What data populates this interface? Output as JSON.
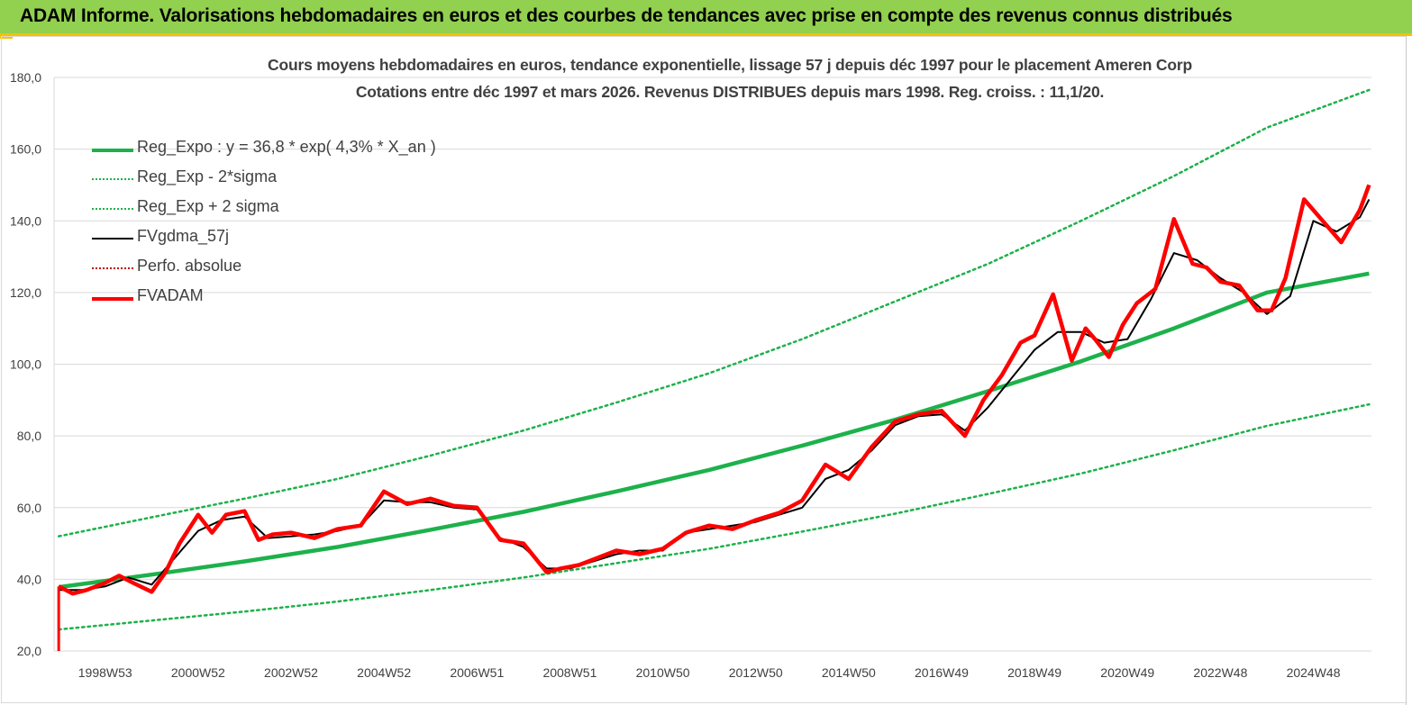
{
  "banner": {
    "title": "ADAM Informe. Valorisations hebdomadaires en euros et des courbes de tendances avec prise en compte des revenus connus distribués"
  },
  "colors": {
    "banner": "#92d050",
    "banner_accent": "#f2c300",
    "trend": "#1db14b",
    "sigma": "#1db14b",
    "smooth": "#000000",
    "perf": "#c00000",
    "fvadam": "#ff0000"
  },
  "chart_data": {
    "type": "line",
    "title": "Cours moyens hebdomadaires en euros, tendance exponentielle, lissage 57 j depuis déc 1997 pour le placement Ameren Corp",
    "subtitle": "Cotations entre déc 1997 et mars 2026. Revenus DISTRIBUES depuis mars 1998. Reg. croiss. : 11,1/20.",
    "xlabel": "",
    "ylabel": "",
    "ylim": [
      20,
      180
    ],
    "xlim": [
      1997.9,
      2026.25
    ],
    "yticks": [
      "20,0",
      "40,0",
      "60,0",
      "80,0",
      "100,0",
      "120,0",
      "140,0",
      "160,0",
      "180,0"
    ],
    "xticks": [
      {
        "label": "1998W53",
        "x": 1999.0
      },
      {
        "label": "2000W52",
        "x": 2001.0
      },
      {
        "label": "2002W52",
        "x": 2003.0
      },
      {
        "label": "2004W52",
        "x": 2005.0
      },
      {
        "label": "2006W51",
        "x": 2007.0
      },
      {
        "label": "2008W51",
        "x": 2009.0
      },
      {
        "label": "2010W50",
        "x": 2011.0
      },
      {
        "label": "2012W50",
        "x": 2013.0
      },
      {
        "label": "2014W50",
        "x": 2015.0
      },
      {
        "label": "2016W49",
        "x": 2017.0
      },
      {
        "label": "2018W49",
        "x": 2019.0
      },
      {
        "label": "2020W49",
        "x": 2021.0
      },
      {
        "label": "2022W48",
        "x": 2023.0
      },
      {
        "label": "2024W48",
        "x": 2025.0
      }
    ],
    "grid": true,
    "legend_position": "top-left",
    "series": [
      {
        "name": "Reg_Expo : y = 36,8 * exp( 4,3% *  X_an )",
        "style": "solid-thick",
        "color": "#1db14b",
        "x": [
          1998.0,
          2000.0,
          2002.0,
          2004.0,
          2006.0,
          2008.0,
          2010.0,
          2012.0,
          2014.0,
          2016.0,
          2018.0,
          2020.0,
          2022.0,
          2024.0,
          2026.2
        ],
        "values": [
          37.8,
          41.3,
          45.0,
          49.0,
          53.8,
          58.8,
          64.5,
          70.5,
          77.3,
          84.5,
          92.5,
          100.8,
          110.0,
          120.0,
          125.3
        ]
      },
      {
        "name": "Reg_Exp - 2*sigma",
        "style": "dotted",
        "color": "#1db14b",
        "x": [
          1998.0,
          2000.0,
          2002.0,
          2004.0,
          2006.0,
          2008.0,
          2010.0,
          2012.0,
          2014.0,
          2016.0,
          2018.0,
          2020.0,
          2022.0,
          2024.0,
          2026.2
        ],
        "values": [
          26.0,
          28.5,
          31.0,
          33.8,
          37.0,
          40.5,
          44.5,
          48.5,
          53.3,
          58.3,
          63.8,
          69.5,
          76.0,
          82.8,
          88.8
        ]
      },
      {
        "name": "Reg_Exp + 2 sigma",
        "style": "dotted",
        "color": "#1db14b",
        "x": [
          1998.0,
          2000.0,
          2002.0,
          2004.0,
          2006.0,
          2008.0,
          2010.0,
          2012.0,
          2014.0,
          2016.0,
          2018.0,
          2020.0,
          2022.0,
          2024.0,
          2026.2
        ],
        "values": [
          52.0,
          57.3,
          62.5,
          68.0,
          74.5,
          81.5,
          89.3,
          97.5,
          107.0,
          117.5,
          128.0,
          140.0,
          152.5,
          166.0,
          176.5
        ]
      },
      {
        "name": "FVgdma_57j",
        "style": "solid",
        "color": "#000000",
        "x": [
          1998.0,
          1998.5,
          1999.0,
          1999.5,
          2000.0,
          2000.5,
          2001.0,
          2001.5,
          2002.0,
          2002.5,
          2003.0,
          2003.5,
          2004.0,
          2004.5,
          2005.0,
          2005.5,
          2006.0,
          2006.5,
          2007.0,
          2007.5,
          2008.0,
          2008.5,
          2009.0,
          2009.5,
          2010.0,
          2010.5,
          2011.0,
          2011.5,
          2012.0,
          2012.5,
          2013.0,
          2013.5,
          2014.0,
          2014.5,
          2015.0,
          2015.5,
          2016.0,
          2016.5,
          2017.0,
          2017.5,
          2018.0,
          2018.5,
          2019.0,
          2019.5,
          2020.0,
          2020.5,
          2021.0,
          2021.5,
          2022.0,
          2022.5,
          2023.0,
          2023.5,
          2024.0,
          2024.5,
          2025.0,
          2025.5,
          2026.0,
          2026.2
        ],
        "values": [
          37.0,
          37.0,
          38.0,
          40.5,
          38.5,
          46.0,
          53.5,
          56.5,
          57.5,
          51.5,
          52.0,
          52.5,
          53.5,
          55.0,
          62.0,
          61.5,
          61.5,
          60.0,
          59.5,
          51.5,
          49.0,
          43.0,
          43.0,
          45.0,
          47.0,
          48.0,
          48.0,
          53.0,
          54.0,
          55.0,
          56.0,
          58.0,
          60.0,
          68.0,
          70.5,
          76.0,
          83.0,
          85.5,
          86.0,
          81.5,
          88.0,
          96.0,
          104.0,
          109.0,
          109.0,
          106.0,
          107.0,
          118.0,
          131.0,
          129.0,
          124.0,
          120.0,
          114.0,
          119.0,
          140.0,
          137.0,
          141.0,
          146.0
        ]
      },
      {
        "name": "Perfo. absolue",
        "style": "dotted",
        "color": "#c00000",
        "values": []
      },
      {
        "name": "FVADAM",
        "style": "solid-thick",
        "color": "#ff0000",
        "x": [
          1998.0,
          1998.3,
          1998.6,
          1999.0,
          1999.3,
          1999.6,
          2000.0,
          2000.3,
          2000.6,
          2001.0,
          2001.3,
          2001.6,
          2002.0,
          2002.3,
          2002.6,
          2003.0,
          2003.5,
          2004.0,
          2004.5,
          2005.0,
          2005.5,
          2006.0,
          2006.5,
          2007.0,
          2007.5,
          2008.0,
          2008.5,
          2008.8,
          2009.2,
          2009.6,
          2010.0,
          2010.5,
          2011.0,
          2011.5,
          2012.0,
          2012.5,
          2013.0,
          2013.5,
          2014.0,
          2014.5,
          2015.0,
          2015.5,
          2016.0,
          2016.5,
          2017.0,
          2017.5,
          2017.9,
          2018.3,
          2018.7,
          2019.0,
          2019.4,
          2019.8,
          2020.1,
          2020.3,
          2020.6,
          2020.9,
          2021.2,
          2021.6,
          2022.0,
          2022.4,
          2022.7,
          2023.0,
          2023.4,
          2023.8,
          2024.1,
          2024.4,
          2024.8,
          2025.2,
          2025.6,
          2026.0,
          2026.2
        ],
        "values": [
          38.0,
          36.0,
          37.0,
          39.0,
          41.0,
          39.0,
          36.5,
          42.0,
          50.0,
          58.0,
          53.0,
          58.0,
          59.0,
          51.0,
          52.5,
          53.0,
          51.5,
          54.0,
          55.0,
          64.5,
          61.0,
          62.5,
          60.5,
          60.0,
          51.0,
          50.0,
          42.0,
          43.0,
          44.0,
          46.0,
          48.0,
          47.0,
          48.5,
          53.0,
          55.0,
          54.0,
          56.5,
          58.5,
          62.0,
          72.0,
          68.0,
          77.0,
          84.0,
          86.0,
          87.0,
          80.0,
          90.0,
          97.0,
          106.0,
          108.0,
          119.5,
          101.0,
          110.0,
          107.0,
          102.0,
          111.0,
          117.0,
          121.0,
          140.5,
          128.0,
          127.0,
          123.0,
          122.0,
          115.0,
          115.0,
          124.0,
          146.0,
          140.0,
          134.0,
          143.0,
          150.0
        ]
      }
    ]
  }
}
